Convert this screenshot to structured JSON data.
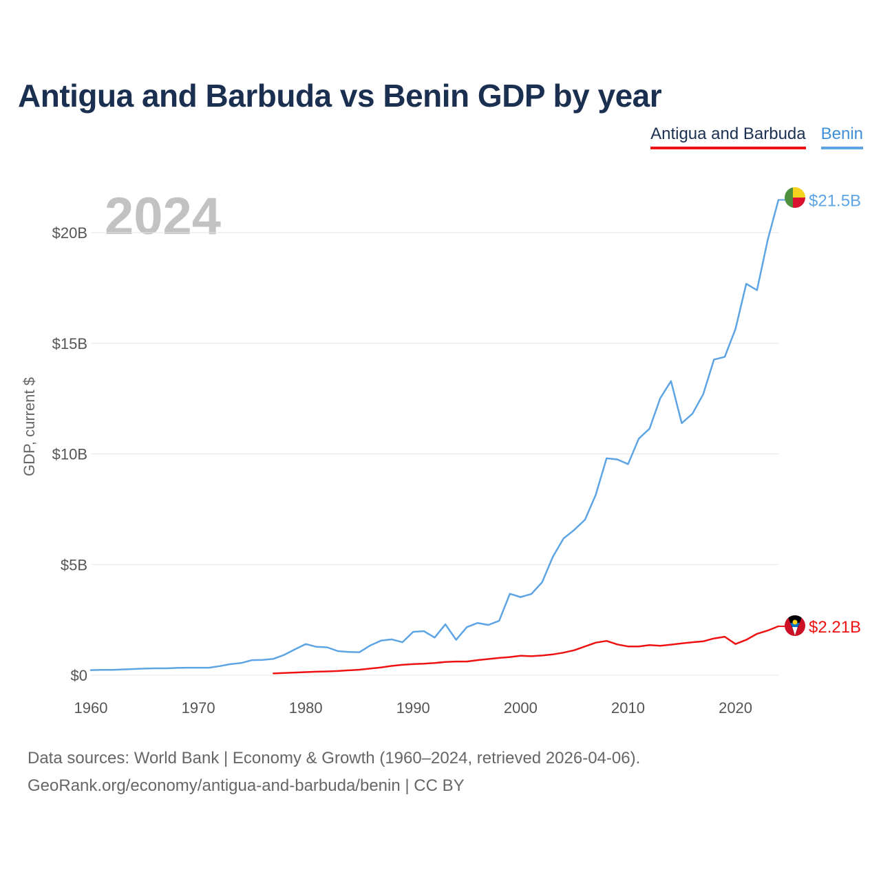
{
  "title": "Antigua and Barbuda vs Benin GDP by year",
  "legend": [
    {
      "name": "Antigua and Barbuda",
      "color": "#ee1111"
    },
    {
      "name": "Benin",
      "color": "#5da4e4"
    }
  ],
  "current_year": "2024",
  "footer": {
    "line1": "Data sources: World Bank | Economy & Growth (1960–2024, retrieved 2026-04-06).",
    "line2": "GeoRank.org/economy/antigua-and-barbuda/benin | CC BY"
  },
  "chart_data": {
    "type": "line",
    "title": "Antigua and Barbuda vs Benin GDP by year",
    "xlabel": "",
    "ylabel": "GDP, current $",
    "xlim": [
      1960,
      2024
    ],
    "ylim": [
      0,
      22
    ],
    "y_ticks": [
      {
        "value": 0,
        "label": "$0"
      },
      {
        "value": 5,
        "label": "$5B"
      },
      {
        "value": 10,
        "label": "$10B"
      },
      {
        "value": 15,
        "label": "$15B"
      },
      {
        "value": 20,
        "label": "$20B"
      }
    ],
    "x_ticks": [
      1960,
      1970,
      1980,
      1990,
      2000,
      2010,
      2020
    ],
    "series": [
      {
        "name": "Benin",
        "color": "#5da4e4",
        "end_label": "$21.5B",
        "x": [
          1960,
          1961,
          1962,
          1963,
          1964,
          1965,
          1966,
          1967,
          1968,
          1969,
          1970,
          1971,
          1972,
          1973,
          1974,
          1975,
          1976,
          1977,
          1978,
          1979,
          1980,
          1981,
          1982,
          1983,
          1984,
          1985,
          1986,
          1987,
          1988,
          1989,
          1990,
          1991,
          1992,
          1993,
          1994,
          1995,
          1996,
          1997,
          1998,
          1999,
          2000,
          2001,
          2002,
          2003,
          2004,
          2005,
          2006,
          2007,
          2008,
          2009,
          2010,
          2011,
          2012,
          2013,
          2014,
          2015,
          2016,
          2017,
          2018,
          2019,
          2020,
          2021,
          2022,
          2023,
          2024
        ],
        "values": [
          0.23,
          0.24,
          0.24,
          0.26,
          0.28,
          0.3,
          0.31,
          0.31,
          0.33,
          0.34,
          0.34,
          0.34,
          0.41,
          0.5,
          0.55,
          0.68,
          0.69,
          0.74,
          0.92,
          1.17,
          1.41,
          1.28,
          1.26,
          1.09,
          1.05,
          1.04,
          1.34,
          1.56,
          1.62,
          1.49,
          1.96,
          1.99,
          1.7,
          2.3,
          1.6,
          2.17,
          2.36,
          2.27,
          2.46,
          3.68,
          3.53,
          3.67,
          4.2,
          5.35,
          6.18,
          6.57,
          7.03,
          8.16,
          9.8,
          9.75,
          9.54,
          10.69,
          11.14,
          12.52,
          13.29,
          11.39,
          11.82,
          12.7,
          14.26,
          14.39,
          15.65,
          17.69,
          17.4,
          19.67,
          21.48
        ]
      },
      {
        "name": "Antigua and Barbuda",
        "color": "#ee1111",
        "end_label": "$2.21B",
        "x": [
          1977,
          1978,
          1979,
          1980,
          1981,
          1982,
          1983,
          1984,
          1985,
          1986,
          1987,
          1988,
          1989,
          1990,
          1991,
          1992,
          1993,
          1994,
          1995,
          1996,
          1997,
          1998,
          1999,
          2000,
          2001,
          2002,
          2003,
          2004,
          2005,
          2006,
          2007,
          2008,
          2009,
          2010,
          2011,
          2012,
          2013,
          2014,
          2015,
          2016,
          2017,
          2018,
          2019,
          2020,
          2021,
          2022,
          2023,
          2024
        ],
        "values": [
          0.08,
          0.1,
          0.12,
          0.14,
          0.16,
          0.17,
          0.19,
          0.22,
          0.25,
          0.3,
          0.35,
          0.42,
          0.47,
          0.5,
          0.52,
          0.55,
          0.6,
          0.62,
          0.62,
          0.68,
          0.73,
          0.78,
          0.82,
          0.88,
          0.86,
          0.89,
          0.94,
          1.02,
          1.13,
          1.3,
          1.47,
          1.55,
          1.39,
          1.3,
          1.3,
          1.36,
          1.33,
          1.38,
          1.44,
          1.49,
          1.53,
          1.66,
          1.74,
          1.41,
          1.6,
          1.87,
          2.02,
          2.21
        ]
      }
    ]
  }
}
